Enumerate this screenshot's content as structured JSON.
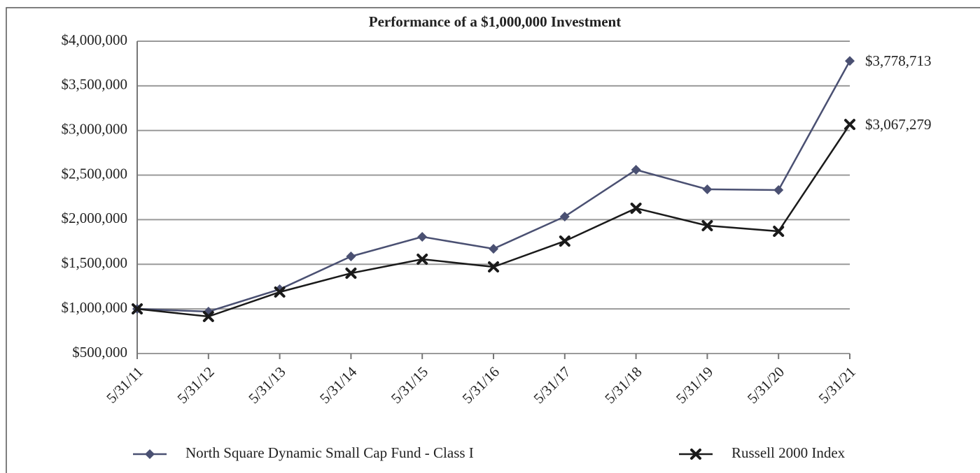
{
  "chart_data": {
    "type": "line",
    "title": "Performance of a $1,000,000 Investment",
    "categories": [
      "5/31/11",
      "5/31/12",
      "5/31/13",
      "5/31/14",
      "5/31/15",
      "5/31/16",
      "5/31/17",
      "5/31/18",
      "5/31/19",
      "5/31/20",
      "5/31/21"
    ],
    "series": [
      {
        "name": "North Square Dynamic Small Cap Fund - Class I",
        "color": "#4a5072",
        "marker": "diamond",
        "values": [
          1000000,
          970000,
          1220000,
          1588000,
          1808000,
          1674000,
          2035000,
          2559000,
          2340000,
          2332000,
          3778713
        ],
        "value_labels": [
          null,
          null,
          null,
          null,
          null,
          null,
          null,
          null,
          null,
          null,
          "$3,778,713"
        ]
      },
      {
        "name": "Russell 2000 Index",
        "color": "#1a1a1a",
        "marker": "x",
        "values": [
          1000000,
          915000,
          1189000,
          1400000,
          1557000,
          1471000,
          1760000,
          2128000,
          1933000,
          1870000,
          3067279
        ],
        "value_labels": [
          null,
          null,
          null,
          null,
          null,
          null,
          null,
          null,
          null,
          null,
          "$3,067,279"
        ]
      }
    ],
    "ylim": [
      500000,
      4000000
    ],
    "yticks": [
      {
        "value": 500000,
        "label": "$500,000"
      },
      {
        "value": 1000000,
        "label": "$1,000,000"
      },
      {
        "value": 1500000,
        "label": "$1,500,000"
      },
      {
        "value": 2000000,
        "label": "$2,000,000"
      },
      {
        "value": 2500000,
        "label": "$2,500,000"
      },
      {
        "value": 3000000,
        "label": "$3,000,000"
      },
      {
        "value": 3500000,
        "label": "$3,500,000"
      },
      {
        "value": 4000000,
        "label": "$4,000,000"
      }
    ],
    "grid": true,
    "legend": "bottom"
  }
}
